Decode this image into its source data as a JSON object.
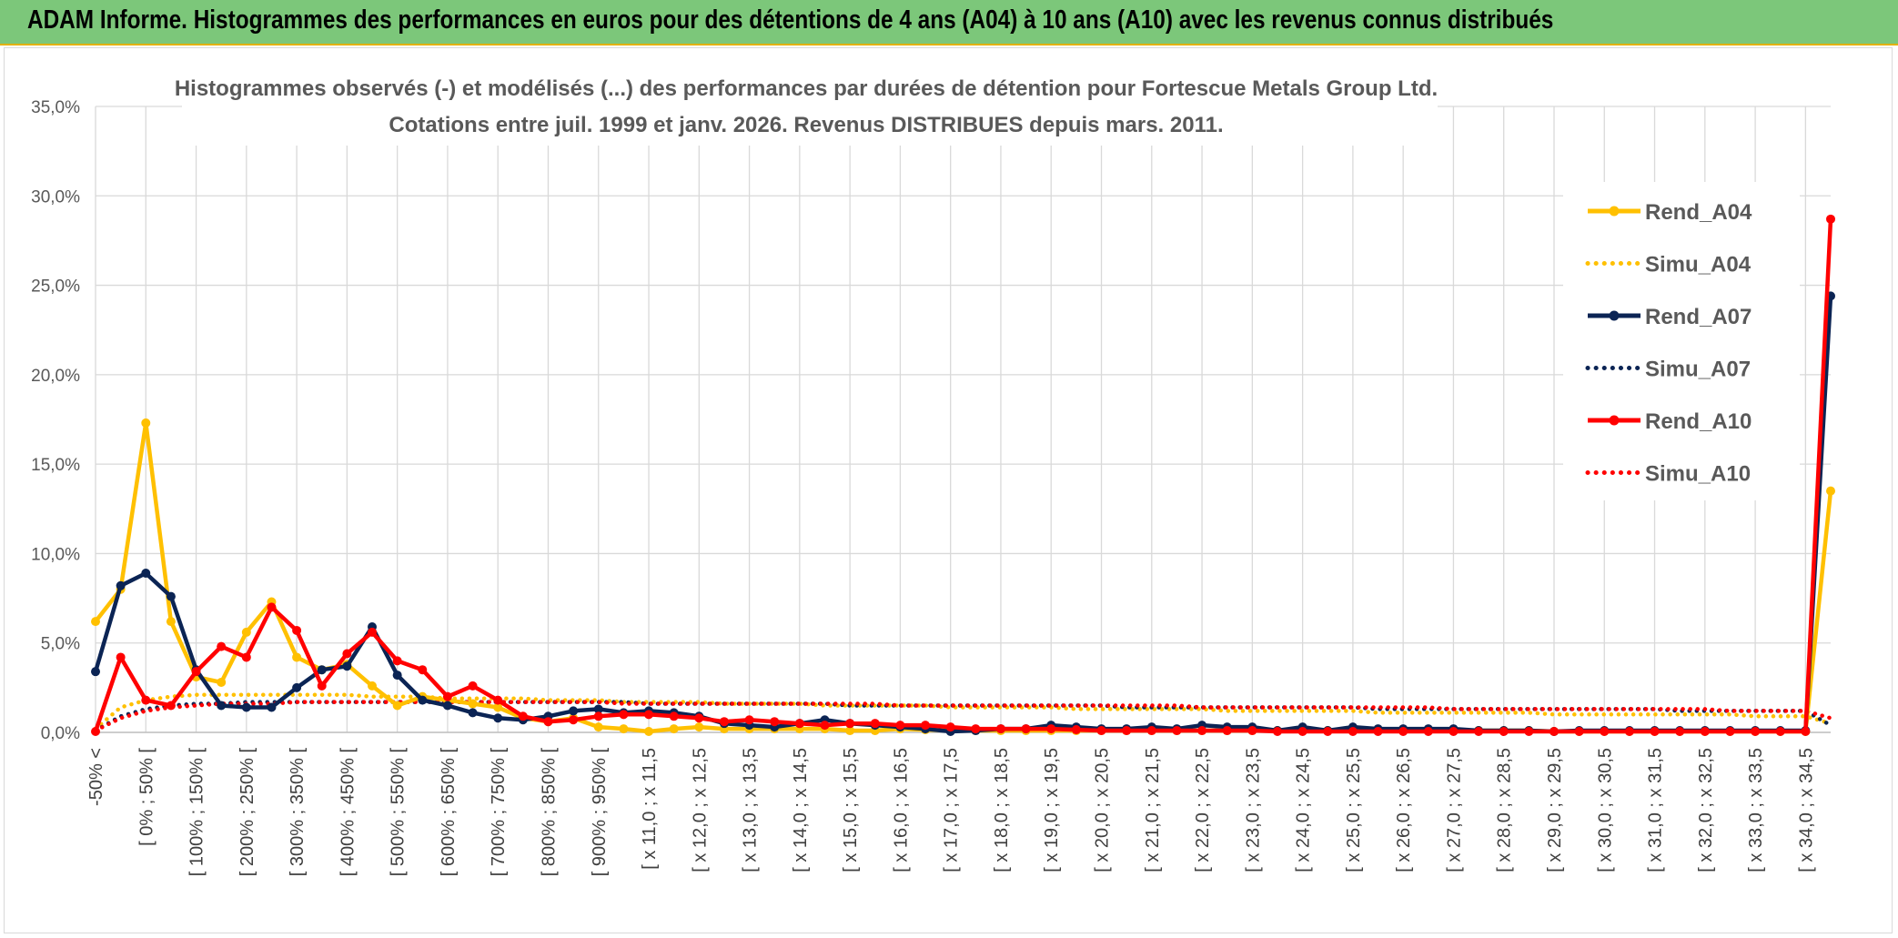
{
  "banner": {
    "title": "ADAM Informe. Histogrammes des performances en euros pour des détentions de 4 ans (A04) à 10 ans (A10) avec les revenus connus distribués"
  },
  "colors": {
    "banner_bg": "#7cc77a",
    "A04": "#ffc000",
    "A07": "#0b2454",
    "A10": "#ff0000",
    "grid": "#d9d9d9"
  },
  "chart_data": {
    "type": "line",
    "title_line1": "Histogrammes observés (-) et modélisés (...) des performances par durées de détention pour Fortescue Metals Group Ltd.",
    "title_line2": "Cotations entre juil. 1999 et janv. 2026. Revenus DISTRIBUES depuis mars. 2011.",
    "ylim": [
      0,
      35
    ],
    "y_ticks": [
      "0,0%",
      "5,0%",
      "10,0%",
      "15,0%",
      "20,0%",
      "25,0%",
      "30,0%",
      "35,0%"
    ],
    "x_tick_labels": [
      "-50% <",
      "[ 0% ; 50% [",
      "[ 100% ; 150% [",
      "[ 200% ; 250% [",
      "[ 300% ; 350% [",
      "[ 400% ; 450% [",
      "[ 500% ; 550% [",
      "[ 600% ; 650% [",
      "[ 700% ; 750% [",
      "[ 800% ; 850% [",
      "[ 900% ; 950% [",
      "[ x 11,0 ; x 11,5",
      "[ x 12,0 ; x 12,5",
      "[ x 13,0 ; x 13,5",
      "[ x 14,0 ; x 14,5",
      "[ x 15,0 ; x 15,5",
      "[ x 16,0 ; x 16,5",
      "[ x 17,0 ; x 17,5",
      "[ x 18,0 ; x 18,5",
      "[ x 19,0 ; x 19,5",
      "[ x 20,0 ; x 20,5",
      "[ x 21,0 ; x 21,5",
      "[ x 22,0 ; x 22,5",
      "[ x 23,0 ; x 23,5",
      "[ x 24,0 ; x 24,5",
      "[ x 25,0 ; x 25,5",
      "[ x 26,0 ; x 26,5",
      "[ x 27,0 ; x 27,5",
      "[ x 28,0 ; x 28,5",
      "[ x 29,0 ; x 29,5",
      "[ x 30,0 ; x 30,5",
      "[ x 31,0 ; x 31,5",
      "[ x 32,0 ; x 32,5",
      "[ x 33,0 ; x 33,5",
      "[ x 34,0 ; x 34,5"
    ],
    "grid": true,
    "legend_position": "right",
    "series": [
      {
        "name": "Rend_A04",
        "style": "solid",
        "color": "#ffc000",
        "values": [
          6.2,
          8.0,
          17.3,
          6.2,
          3.1,
          2.8,
          5.6,
          7.3,
          4.2,
          3.5,
          3.8,
          2.6,
          1.5,
          2.0,
          1.8,
          1.6,
          1.4,
          0.8,
          0.6,
          0.8,
          0.3,
          0.2,
          0.05,
          0.2,
          0.3,
          0.2,
          0.2,
          0.2,
          0.2,
          0.2,
          0.1,
          0.1,
          0.2,
          0.15,
          0.1,
          0.1,
          0.1,
          0.1,
          0.1,
          0.1,
          0.1,
          0.1,
          0.1,
          0.1,
          0.1,
          0.1,
          0.1,
          0.1,
          0.1,
          0.1,
          0.1,
          0.1,
          0.1,
          0.1,
          0.1,
          0.1,
          0.1,
          0.1,
          0.05,
          0.05,
          0.05,
          0.05,
          0.05,
          0.05,
          0.05,
          0.05,
          0.05,
          0.05,
          0.05,
          13.5
        ]
      },
      {
        "name": "Simu_A04",
        "style": "dotted",
        "color": "#ffc000",
        "values": [
          0.2,
          1.4,
          1.8,
          2.0,
          2.1,
          2.1,
          2.1,
          2.1,
          2.1,
          2.1,
          2.1,
          2.0,
          2.0,
          2.0,
          1.9,
          1.9,
          1.9,
          1.9,
          1.8,
          1.8,
          1.8,
          1.7,
          1.7,
          1.7,
          1.7,
          1.6,
          1.6,
          1.6,
          1.6,
          1.5,
          1.5,
          1.5,
          1.5,
          1.5,
          1.4,
          1.4,
          1.4,
          1.4,
          1.4,
          1.3,
          1.3,
          1.3,
          1.3,
          1.3,
          1.3,
          1.2,
          1.2,
          1.2,
          1.2,
          1.2,
          1.2,
          1.1,
          1.1,
          1.1,
          1.1,
          1.1,
          1.1,
          1.1,
          1.0,
          1.0,
          1.0,
          1.0,
          1.0,
          1.0,
          1.0,
          1.0,
          0.9,
          0.9,
          0.9,
          0.5
        ]
      },
      {
        "name": "Rend_A07",
        "style": "solid",
        "color": "#0b2454",
        "values": [
          3.4,
          8.2,
          8.9,
          7.6,
          3.5,
          1.5,
          1.4,
          1.4,
          2.5,
          3.5,
          3.7,
          5.9,
          3.2,
          1.8,
          1.5,
          1.1,
          0.8,
          0.7,
          0.9,
          1.2,
          1.3,
          1.1,
          1.2,
          1.1,
          0.9,
          0.5,
          0.4,
          0.3,
          0.5,
          0.7,
          0.5,
          0.4,
          0.3,
          0.2,
          0.05,
          0.1,
          0.2,
          0.2,
          0.4,
          0.3,
          0.2,
          0.2,
          0.3,
          0.2,
          0.4,
          0.3,
          0.3,
          0.1,
          0.3,
          0.1,
          0.3,
          0.2,
          0.2,
          0.2,
          0.2,
          0.1,
          0.1,
          0.1,
          0.05,
          0.1,
          0.1,
          0.1,
          0.1,
          0.1,
          0.1,
          0.1,
          0.1,
          0.1,
          0.1,
          24.4
        ]
      },
      {
        "name": "Simu_A07",
        "style": "dotted",
        "color": "#0b2454",
        "values": [
          0.1,
          0.9,
          1.3,
          1.5,
          1.6,
          1.6,
          1.7,
          1.7,
          1.7,
          1.7,
          1.7,
          1.7,
          1.7,
          1.7,
          1.7,
          1.7,
          1.7,
          1.7,
          1.7,
          1.7,
          1.7,
          1.7,
          1.6,
          1.6,
          1.6,
          1.6,
          1.6,
          1.6,
          1.6,
          1.6,
          1.5,
          1.5,
          1.5,
          1.5,
          1.5,
          1.5,
          1.5,
          1.5,
          1.5,
          1.5,
          1.5,
          1.4,
          1.4,
          1.4,
          1.4,
          1.4,
          1.4,
          1.4,
          1.4,
          1.4,
          1.4,
          1.3,
          1.3,
          1.3,
          1.3,
          1.3,
          1.3,
          1.3,
          1.3,
          1.3,
          1.3,
          1.3,
          1.3,
          1.2,
          1.2,
          1.2,
          1.2,
          1.2,
          1.2,
          0.4
        ]
      },
      {
        "name": "Rend_A10",
        "style": "solid",
        "color": "#ff0000",
        "values": [
          0.05,
          4.2,
          1.8,
          1.5,
          3.4,
          4.8,
          4.2,
          7.0,
          5.7,
          2.6,
          4.4,
          5.6,
          4.0,
          3.5,
          2.0,
          2.6,
          1.8,
          0.9,
          0.6,
          0.7,
          0.9,
          1.0,
          1.0,
          0.9,
          0.8,
          0.6,
          0.7,
          0.6,
          0.5,
          0.4,
          0.5,
          0.5,
          0.4,
          0.4,
          0.3,
          0.2,
          0.2,
          0.2,
          0.2,
          0.15,
          0.1,
          0.1,
          0.1,
          0.1,
          0.1,
          0.1,
          0.1,
          0.05,
          0.05,
          0.05,
          0.05,
          0.05,
          0.05,
          0.05,
          0.05,
          0.05,
          0.05,
          0.05,
          0.05,
          0.05,
          0.05,
          0.05,
          0.05,
          0.05,
          0.05,
          0.05,
          0.05,
          0.05,
          0.05,
          28.7
        ]
      },
      {
        "name": "Simu_A10",
        "style": "dotted",
        "color": "#ff0000",
        "values": [
          0.1,
          0.8,
          1.2,
          1.4,
          1.5,
          1.6,
          1.6,
          1.6,
          1.7,
          1.7,
          1.7,
          1.7,
          1.7,
          1.7,
          1.7,
          1.7,
          1.7,
          1.7,
          1.7,
          1.7,
          1.7,
          1.6,
          1.6,
          1.6,
          1.6,
          1.6,
          1.6,
          1.6,
          1.6,
          1.6,
          1.6,
          1.6,
          1.5,
          1.5,
          1.5,
          1.5,
          1.5,
          1.5,
          1.5,
          1.5,
          1.5,
          1.5,
          1.5,
          1.5,
          1.4,
          1.4,
          1.4,
          1.4,
          1.4,
          1.4,
          1.4,
          1.4,
          1.4,
          1.4,
          1.3,
          1.3,
          1.3,
          1.3,
          1.3,
          1.3,
          1.3,
          1.3,
          1.3,
          1.3,
          1.3,
          1.2,
          1.2,
          1.2,
          1.2,
          0.8
        ]
      }
    ]
  }
}
